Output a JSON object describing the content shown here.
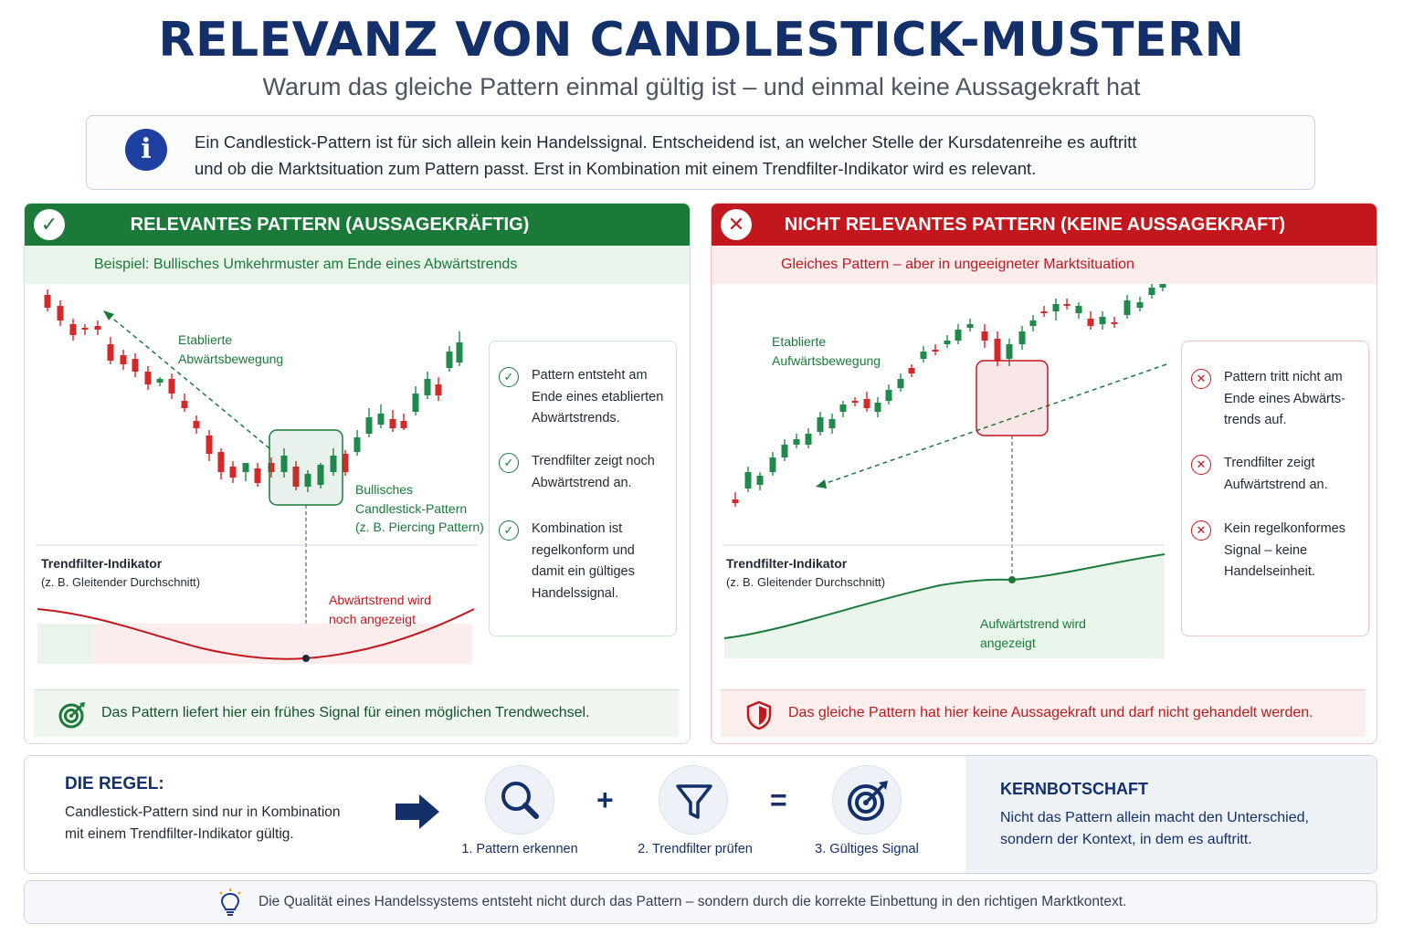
{
  "header": {
    "title": "RELEVANZ VON CANDLESTICK-MUSTERN",
    "subtitle": "Warum das gleiche Pattern einmal gültig ist – und einmal keine Aussagekraft hat"
  },
  "info": {
    "line1": "Ein Candlestick-Pattern ist für sich allein kein Handelssignal. Entscheidend ist, an welcher Stelle der Kursdatenreihe es auftritt",
    "line2": "und ob die Marktsituation zum Pattern passt. Erst in Kombination mit einem Trendfilter-Indikator wird es relevant."
  },
  "left_panel": {
    "title": "RELEVANTES PATTERN (AUSSAGEKRÄFTIG)",
    "subtitle": "Beispiel: Bullisches Umkehrmuster am Ende eines Abwärtstrends",
    "trend_label_1": "Etablierte",
    "trend_label_2": "Abwärtsbewegung",
    "pattern_label_1": "Bullisches",
    "pattern_label_2": "Candlestick-Pattern",
    "pattern_label_3": "(z. B. Piercing Pattern)",
    "indicator_title": "Trendfilter-Indikator",
    "indicator_sub": "(z. B. Gleitender Durchschnitt)",
    "indicator_note_1": "Abwärtstrend wird",
    "indicator_note_2": "noch angezeigt",
    "checks": [
      {
        "l1": "Pattern entsteht am",
        "l2": "Ende eines etablierten",
        "l3": "Abwärtstrends."
      },
      {
        "l1": "Trendfilter zeigt noch",
        "l2": "Abwärtstrend an.",
        "l3": ""
      },
      {
        "l1": "Kombination ist",
        "l2": "regelkonform und",
        "l3": "damit ein gültiges",
        "l4": "Handelssignal."
      }
    ],
    "footer": "Das Pattern liefert hier ein frühes Signal für einen möglichen Trendwechsel."
  },
  "right_panel": {
    "title": "NICHT RELEVANTES PATTERN (KEINE AUSSAGEKRAFT)",
    "subtitle": "Gleiches Pattern – aber in ungeeigneter Marktsituation",
    "trend_label_1": "Etablierte",
    "trend_label_2": "Aufwärtsbewegung",
    "indicator_title": "Trendfilter-Indikator",
    "indicator_sub": "(z. B. Gleitender Durchschnitt)",
    "indicator_note_1": "Aufwärtstrend wird",
    "indicator_note_2": "angezeigt",
    "checks": [
      {
        "l1": "Pattern tritt nicht am",
        "l2": "Ende eines Abwärts-",
        "l3": "trends auf."
      },
      {
        "l1": "Trendfilter zeigt",
        "l2": "Aufwärtstrend an.",
        "l3": ""
      },
      {
        "l1": "Kein regelkonformes",
        "l2": "Signal – keine",
        "l3": "Handelseinheit."
      }
    ],
    "footer": "Das gleiche Pattern hat hier keine Aussagekraft und darf nicht gehandelt werden."
  },
  "rule": {
    "title": "DIE REGEL:",
    "line1": "Candlestick-Pattern sind nur in Kombination",
    "line2": "mit einem Trendfilter-Indikator gültig.",
    "steps": [
      "1. Pattern erkennen",
      "2. Trendfilter prüfen",
      "3. Gültiges Signal"
    ],
    "plus": "+",
    "equals": "="
  },
  "kern": {
    "title": "KERNBOTSCHAFT",
    "line1": "Nicht das Pattern allein macht den Unterschied,",
    "line2": "sondern der Kontext, in dem es auftritt."
  },
  "bottom": {
    "text": "Die Qualität eines Handelssystems entsteht nicht durch das Pattern – sondern durch die korrekte Einbettung in den richtigen Marktkontext."
  },
  "colors": {
    "navy": "#14306b",
    "green": "#1b7a3a",
    "red": "#c3171e",
    "candle_green": "#1f8a4c",
    "candle_red": "#d62828"
  }
}
